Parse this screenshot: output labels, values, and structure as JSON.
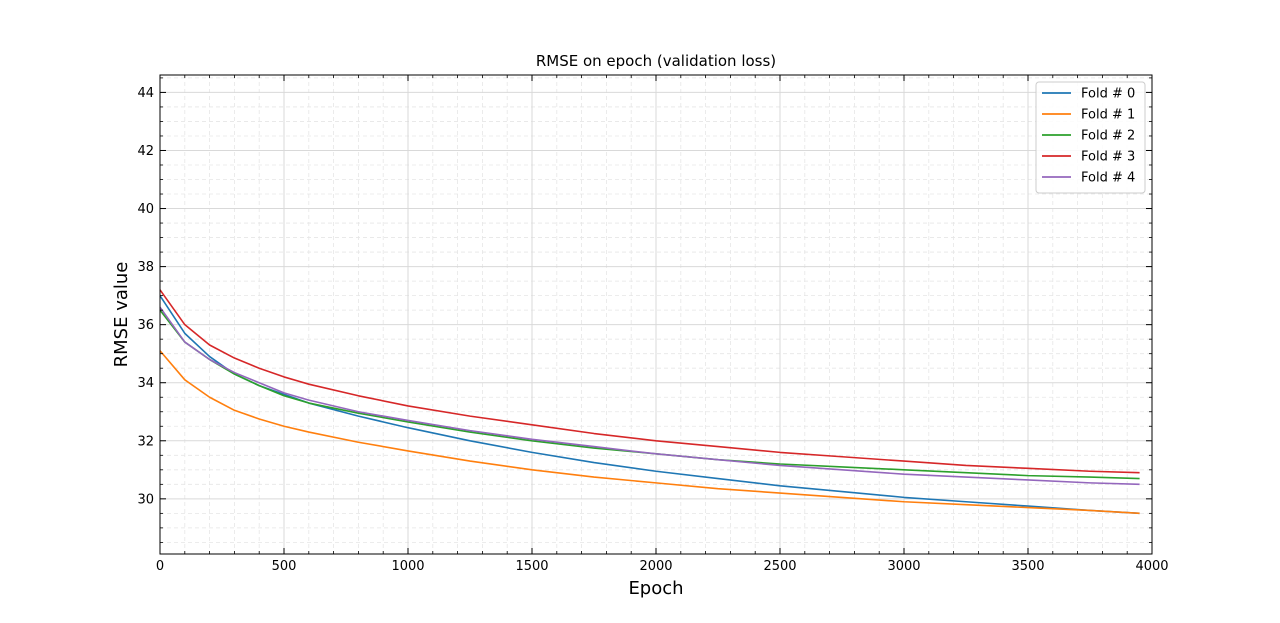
{
  "chart_data": {
    "type": "line",
    "title": "RMSE on epoch (validation loss)",
    "xlabel": "Epoch",
    "ylabel": "RMSE value",
    "xlim": [
      0,
      4000
    ],
    "ylim": [
      28.1,
      44.6
    ],
    "xticks": [
      0,
      500,
      1000,
      1500,
      2000,
      2500,
      3000,
      3500,
      4000
    ],
    "xtick_labels": [
      "0",
      "500",
      "1000",
      "1500",
      "2000",
      "2500",
      "3000",
      "3500",
      "4000"
    ],
    "yticks": [
      30,
      32,
      34,
      36,
      38,
      40,
      42,
      44
    ],
    "ytick_labels": [
      "30",
      "32",
      "34",
      "36",
      "38",
      "40",
      "42",
      "44"
    ],
    "grid": true,
    "legend_position": "top-right",
    "x": [
      0,
      100,
      200,
      300,
      400,
      500,
      600,
      800,
      1000,
      1250,
      1500,
      1750,
      2000,
      2250,
      2500,
      2750,
      3000,
      3250,
      3500,
      3750,
      3950
    ],
    "series": [
      {
        "name": "Fold # 0",
        "color": "#1f77b4",
        "values": [
          37.0,
          35.7,
          34.9,
          34.3,
          33.9,
          33.6,
          33.3,
          32.85,
          32.45,
          32.0,
          31.6,
          31.25,
          30.95,
          30.7,
          30.45,
          30.25,
          30.05,
          29.9,
          29.75,
          29.6,
          29.5
        ]
      },
      {
        "name": "Fold # 1",
        "color": "#ff7f0e",
        "values": [
          35.1,
          34.1,
          33.5,
          33.05,
          32.75,
          32.5,
          32.3,
          31.95,
          31.65,
          31.3,
          31.0,
          30.75,
          30.55,
          30.35,
          30.2,
          30.05,
          29.9,
          29.8,
          29.7,
          29.6,
          29.5
        ]
      },
      {
        "name": "Fold # 2",
        "color": "#2ca02c",
        "values": [
          36.5,
          35.4,
          34.8,
          34.3,
          33.9,
          33.55,
          33.3,
          32.95,
          32.65,
          32.3,
          32.0,
          31.75,
          31.55,
          31.35,
          31.2,
          31.1,
          31.0,
          30.9,
          30.8,
          30.75,
          30.7
        ]
      },
      {
        "name": "Fold # 3",
        "color": "#d62728",
        "values": [
          37.2,
          36.0,
          35.3,
          34.85,
          34.5,
          34.2,
          33.95,
          33.55,
          33.2,
          32.85,
          32.55,
          32.25,
          32.0,
          31.8,
          31.6,
          31.45,
          31.3,
          31.15,
          31.05,
          30.95,
          30.9
        ]
      },
      {
        "name": "Fold # 4",
        "color": "#9467bd",
        "values": [
          36.6,
          35.4,
          34.8,
          34.35,
          34.0,
          33.65,
          33.4,
          33.0,
          32.7,
          32.35,
          32.05,
          31.8,
          31.55,
          31.35,
          31.15,
          31.0,
          30.85,
          30.75,
          30.65,
          30.55,
          30.5
        ]
      }
    ]
  }
}
